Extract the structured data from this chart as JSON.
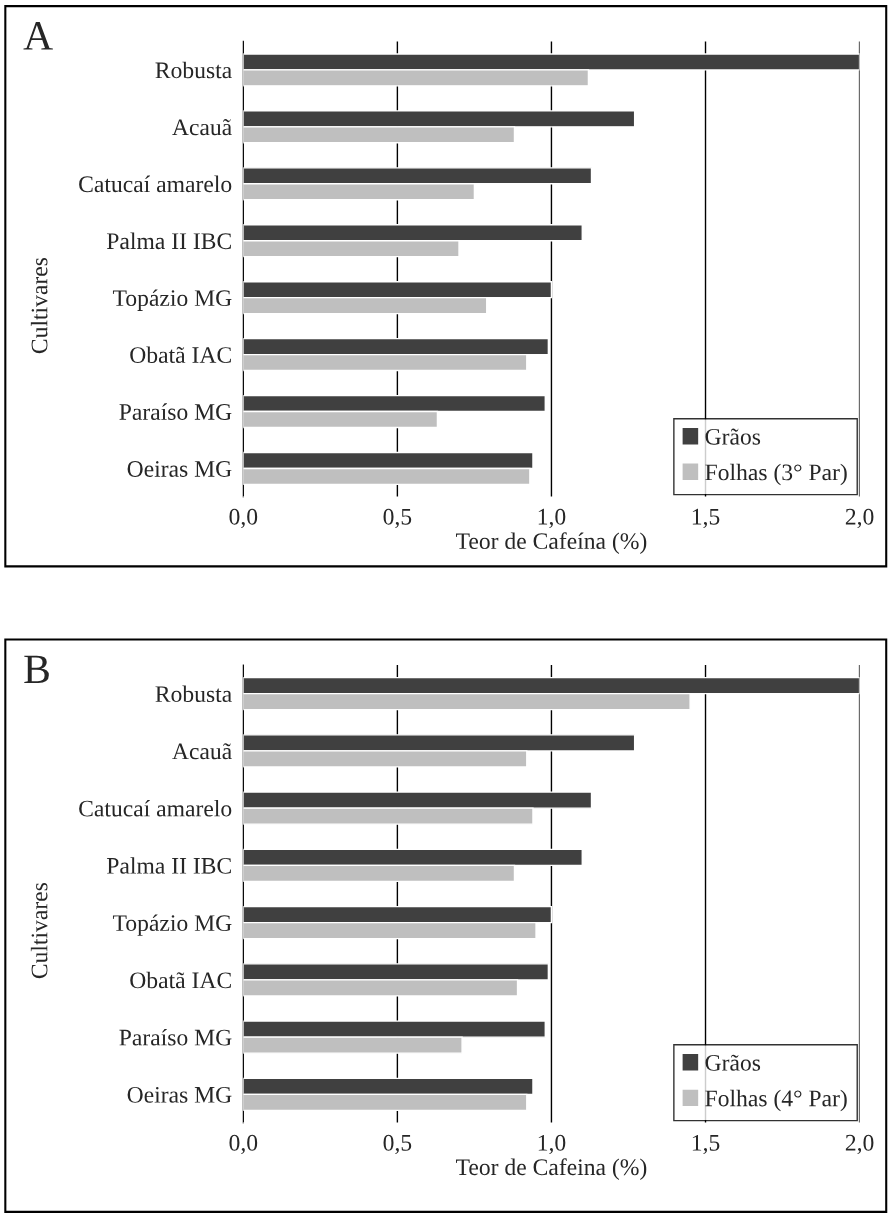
{
  "chart_data": [
    {
      "type": "bar",
      "title": "A",
      "orientation": "horizontal",
      "categories": [
        "Robusta",
        "Acauã",
        "Catucaí amarelo",
        "Palma II IBC",
        "Topázio MG",
        "Obatã IAC",
        "Paraíso MG",
        "Oeiras MG"
      ],
      "series": [
        {
          "name": "Grãos",
          "color": "#404040",
          "values": [
            2.0,
            1.27,
            1.13,
            1.1,
            1.0,
            0.99,
            0.98,
            0.94
          ]
        },
        {
          "name": "Folhas (3° Par)",
          "color": "#bfbfbf",
          "values": [
            1.12,
            0.88,
            0.75,
            0.7,
            0.79,
            0.92,
            0.63,
            0.93
          ]
        }
      ],
      "xlabel": "Teor de Cafeína (%)",
      "ylabel": "Cultivares",
      "xlim": [
        0,
        2.0
      ],
      "xticks": [
        {
          "value": 0,
          "label": "0,0"
        },
        {
          "value": 0.5,
          "label": "0,5"
        },
        {
          "value": 1.0,
          "label": "1,0"
        },
        {
          "value": 1.5,
          "label": "1,5"
        },
        {
          "value": 2.0,
          "label": "2,0"
        }
      ],
      "grid": "x",
      "legend": "bottom right"
    },
    {
      "type": "bar",
      "title": "B",
      "orientation": "horizontal",
      "categories": [
        "Robusta",
        "Acauã",
        "Catucaí amarelo",
        "Palma II IBC",
        "Topázio MG",
        "Obatã IAC",
        "Paraíso MG",
        "Oeiras MG"
      ],
      "series": [
        {
          "name": "Grãos",
          "color": "#404040",
          "values": [
            2.0,
            1.27,
            1.13,
            1.1,
            1.0,
            0.99,
            0.98,
            0.94
          ]
        },
        {
          "name": "Folhas (4° Par)",
          "color": "#bfbfbf",
          "values": [
            1.45,
            0.92,
            0.94,
            0.88,
            0.95,
            0.89,
            0.71,
            0.92
          ]
        }
      ],
      "xlabel": "Teor de Cafeina (%)",
      "ylabel": "Cultivares",
      "xlim": [
        0,
        2.0
      ],
      "xticks": [
        {
          "value": 0,
          "label": "0,0"
        },
        {
          "value": 0.5,
          "label": "0,5"
        },
        {
          "value": 1.0,
          "label": "1,0"
        },
        {
          "value": 1.5,
          "label": "1,5"
        },
        {
          "value": 2.0,
          "label": "2,0"
        }
      ],
      "grid": "x",
      "legend": "bottom right"
    }
  ]
}
